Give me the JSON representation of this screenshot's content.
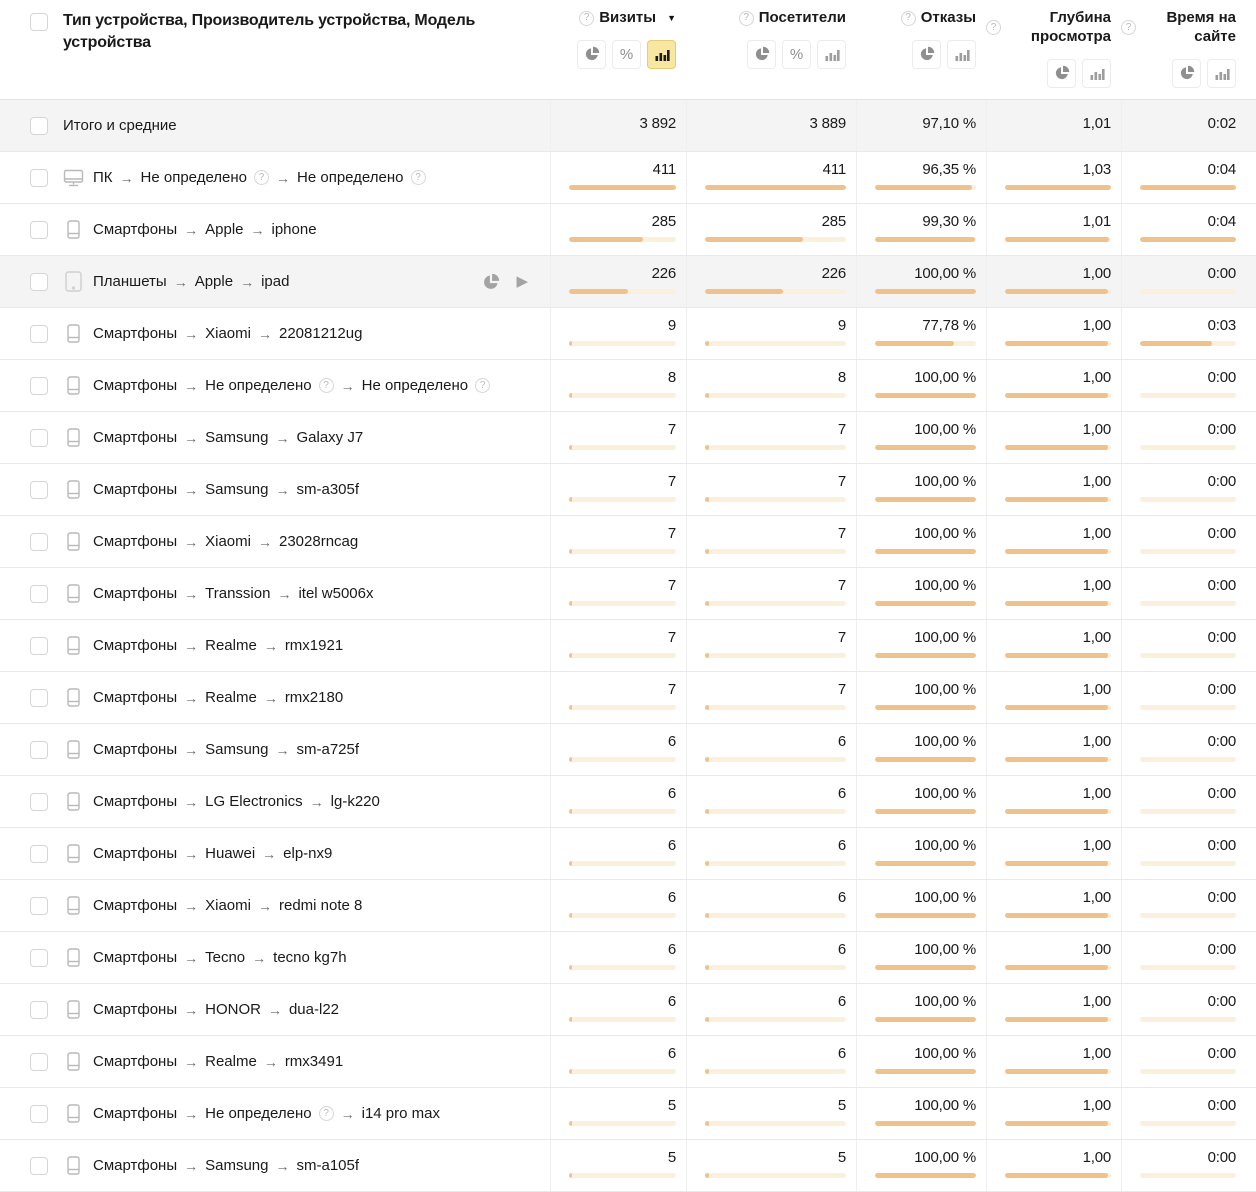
{
  "header": {
    "title": "Тип устройства, Производитель устройства, Модель устройства",
    "columns": [
      {
        "label": "Визиты",
        "help_icon": "help-circle",
        "sorted": "desc",
        "tools": [
          "pie",
          "percent",
          "bars"
        ],
        "active_tool": "bars"
      },
      {
        "label": "Посетители",
        "help_icon": "help-circle",
        "sorted": null,
        "tools": [
          "pie",
          "percent",
          "bars"
        ],
        "active_tool": null
      },
      {
        "label": "Отказы",
        "help_icon": "help-circle",
        "sorted": null,
        "tools": [
          "pie",
          "bars"
        ],
        "active_tool": null
      },
      {
        "label": "Глубина просмотра",
        "help_icon": "help-circle",
        "sorted": null,
        "tools": [
          "pie",
          "bars"
        ],
        "active_tool": null
      },
      {
        "label": "Время на сайте",
        "help_icon": "help-circle",
        "sorted": null,
        "tools": [
          "pie",
          "bars"
        ],
        "active_tool": null
      }
    ]
  },
  "totals": {
    "label": "Итого и средние",
    "visits": "3 892",
    "visitors": "3 889",
    "bounce": "97,10 %",
    "depth": "1,01",
    "time": "0:02"
  },
  "bar_scale": {
    "visits_max": 411,
    "visitors_max": 411,
    "bounce_max": 100,
    "depth_max": 1.03,
    "time_max": 4
  },
  "colors": {
    "bar_fill": "#efc28a",
    "bar_track": "#faf0dd",
    "selected_tool_bg": "#f8e7a0"
  },
  "rows": [
    {
      "icon": "desktop",
      "segments": [
        {
          "text": "ПК"
        },
        {
          "text": "Не определено",
          "help": true
        },
        {
          "text": "Не определено",
          "help": true
        }
      ],
      "visits": "411",
      "visitors": "411",
      "bounce": "96,35 %",
      "depth": "1,03",
      "time": "0:04",
      "nums": {
        "visits": 411,
        "visitors": 411,
        "bounce": 96.35,
        "depth": 1.03,
        "time": 4
      },
      "selected": false
    },
    {
      "icon": "phone",
      "segments": [
        {
          "text": "Смартфоны"
        },
        {
          "text": "Apple"
        },
        {
          "text": "iphone"
        }
      ],
      "visits": "285",
      "visitors": "285",
      "bounce": "99,30 %",
      "depth": "1,01",
      "time": "0:04",
      "nums": {
        "visits": 285,
        "visitors": 285,
        "bounce": 99.3,
        "depth": 1.01,
        "time": 4
      },
      "selected": false
    },
    {
      "icon": "tablet",
      "segments": [
        {
          "text": "Планшеты"
        },
        {
          "text": "Apple"
        },
        {
          "text": "ipad"
        }
      ],
      "visits": "226",
      "visitors": "226",
      "bounce": "100,00 %",
      "depth": "1,00",
      "time": "0:00",
      "nums": {
        "visits": 226,
        "visitors": 226,
        "bounce": 100,
        "depth": 1.0,
        "time": 0
      },
      "selected": true,
      "actions": [
        "pie-chart",
        "expand-play"
      ]
    },
    {
      "icon": "phone",
      "segments": [
        {
          "text": "Смартфоны"
        },
        {
          "text": "Xiaomi"
        },
        {
          "text": "22081212ug"
        }
      ],
      "visits": "9",
      "visitors": "9",
      "bounce": "77,78 %",
      "depth": "1,00",
      "time": "0:03",
      "nums": {
        "visits": 9,
        "visitors": 9,
        "bounce": 77.78,
        "depth": 1.0,
        "time": 3
      },
      "selected": false
    },
    {
      "icon": "phone",
      "segments": [
        {
          "text": "Смартфоны"
        },
        {
          "text": "Не определено",
          "help": true
        },
        {
          "text": "Не определено",
          "help": true
        }
      ],
      "visits": "8",
      "visitors": "8",
      "bounce": "100,00 %",
      "depth": "1,00",
      "time": "0:00",
      "nums": {
        "visits": 8,
        "visitors": 8,
        "bounce": 100,
        "depth": 1.0,
        "time": 0
      },
      "selected": false
    },
    {
      "icon": "phone",
      "segments": [
        {
          "text": "Смартфоны"
        },
        {
          "text": "Samsung"
        },
        {
          "text": "Galaxy J7"
        }
      ],
      "visits": "7",
      "visitors": "7",
      "bounce": "100,00 %",
      "depth": "1,00",
      "time": "0:00",
      "nums": {
        "visits": 7,
        "visitors": 7,
        "bounce": 100,
        "depth": 1.0,
        "time": 0
      },
      "selected": false
    },
    {
      "icon": "phone",
      "segments": [
        {
          "text": "Смартфоны"
        },
        {
          "text": "Samsung"
        },
        {
          "text": "sm-a305f"
        }
      ],
      "visits": "7",
      "visitors": "7",
      "bounce": "100,00 %",
      "depth": "1,00",
      "time": "0:00",
      "nums": {
        "visits": 7,
        "visitors": 7,
        "bounce": 100,
        "depth": 1.0,
        "time": 0
      },
      "selected": false
    },
    {
      "icon": "phone",
      "segments": [
        {
          "text": "Смартфоны"
        },
        {
          "text": "Xiaomi"
        },
        {
          "text": "23028rncag"
        }
      ],
      "visits": "7",
      "visitors": "7",
      "bounce": "100,00 %",
      "depth": "1,00",
      "time": "0:00",
      "nums": {
        "visits": 7,
        "visitors": 7,
        "bounce": 100,
        "depth": 1.0,
        "time": 0
      },
      "selected": false
    },
    {
      "icon": "phone",
      "segments": [
        {
          "text": "Смартфоны"
        },
        {
          "text": "Transsion"
        },
        {
          "text": "itel w5006x"
        }
      ],
      "visits": "7",
      "visitors": "7",
      "bounce": "100,00 %",
      "depth": "1,00",
      "time": "0:00",
      "nums": {
        "visits": 7,
        "visitors": 7,
        "bounce": 100,
        "depth": 1.0,
        "time": 0
      },
      "selected": false
    },
    {
      "icon": "phone",
      "segments": [
        {
          "text": "Смартфоны"
        },
        {
          "text": "Realme"
        },
        {
          "text": "rmx1921"
        }
      ],
      "visits": "7",
      "visitors": "7",
      "bounce": "100,00 %",
      "depth": "1,00",
      "time": "0:00",
      "nums": {
        "visits": 7,
        "visitors": 7,
        "bounce": 100,
        "depth": 1.0,
        "time": 0
      },
      "selected": false
    },
    {
      "icon": "phone",
      "segments": [
        {
          "text": "Смартфоны"
        },
        {
          "text": "Realme"
        },
        {
          "text": "rmx2180"
        }
      ],
      "visits": "7",
      "visitors": "7",
      "bounce": "100,00 %",
      "depth": "1,00",
      "time": "0:00",
      "nums": {
        "visits": 7,
        "visitors": 7,
        "bounce": 100,
        "depth": 1.0,
        "time": 0
      },
      "selected": false
    },
    {
      "icon": "phone",
      "segments": [
        {
          "text": "Смартфоны"
        },
        {
          "text": "Samsung"
        },
        {
          "text": "sm-a725f"
        }
      ],
      "visits": "6",
      "visitors": "6",
      "bounce": "100,00 %",
      "depth": "1,00",
      "time": "0:00",
      "nums": {
        "visits": 6,
        "visitors": 6,
        "bounce": 100,
        "depth": 1.0,
        "time": 0
      },
      "selected": false
    },
    {
      "icon": "phone",
      "segments": [
        {
          "text": "Смартфоны"
        },
        {
          "text": "LG Electronics"
        },
        {
          "text": "lg-k220"
        }
      ],
      "visits": "6",
      "visitors": "6",
      "bounce": "100,00 %",
      "depth": "1,00",
      "time": "0:00",
      "nums": {
        "visits": 6,
        "visitors": 6,
        "bounce": 100,
        "depth": 1.0,
        "time": 0
      },
      "selected": false
    },
    {
      "icon": "phone",
      "segments": [
        {
          "text": "Смартфоны"
        },
        {
          "text": "Huawei"
        },
        {
          "text": "elp-nx9"
        }
      ],
      "visits": "6",
      "visitors": "6",
      "bounce": "100,00 %",
      "depth": "1,00",
      "time": "0:00",
      "nums": {
        "visits": 6,
        "visitors": 6,
        "bounce": 100,
        "depth": 1.0,
        "time": 0
      },
      "selected": false
    },
    {
      "icon": "phone",
      "segments": [
        {
          "text": "Смартфоны"
        },
        {
          "text": "Xiaomi"
        },
        {
          "text": "redmi note 8"
        }
      ],
      "visits": "6",
      "visitors": "6",
      "bounce": "100,00 %",
      "depth": "1,00",
      "time": "0:00",
      "nums": {
        "visits": 6,
        "visitors": 6,
        "bounce": 100,
        "depth": 1.0,
        "time": 0
      },
      "selected": false
    },
    {
      "icon": "phone",
      "segments": [
        {
          "text": "Смартфоны"
        },
        {
          "text": "Tecno"
        },
        {
          "text": "tecno kg7h"
        }
      ],
      "visits": "6",
      "visitors": "6",
      "bounce": "100,00 %",
      "depth": "1,00",
      "time": "0:00",
      "nums": {
        "visits": 6,
        "visitors": 6,
        "bounce": 100,
        "depth": 1.0,
        "time": 0
      },
      "selected": false
    },
    {
      "icon": "phone",
      "segments": [
        {
          "text": "Смартфоны"
        },
        {
          "text": "HONOR"
        },
        {
          "text": "dua-l22"
        }
      ],
      "visits": "6",
      "visitors": "6",
      "bounce": "100,00 %",
      "depth": "1,00",
      "time": "0:00",
      "nums": {
        "visits": 6,
        "visitors": 6,
        "bounce": 100,
        "depth": 1.0,
        "time": 0
      },
      "selected": false
    },
    {
      "icon": "phone",
      "segments": [
        {
          "text": "Смартфоны"
        },
        {
          "text": "Realme"
        },
        {
          "text": "rmx3491"
        }
      ],
      "visits": "6",
      "visitors": "6",
      "bounce": "100,00 %",
      "depth": "1,00",
      "time": "0:00",
      "nums": {
        "visits": 6,
        "visitors": 6,
        "bounce": 100,
        "depth": 1.0,
        "time": 0
      },
      "selected": false
    },
    {
      "icon": "phone",
      "segments": [
        {
          "text": "Смартфоны"
        },
        {
          "text": "Не определено",
          "help": true
        },
        {
          "text": "i14 pro max"
        }
      ],
      "visits": "5",
      "visitors": "5",
      "bounce": "100,00 %",
      "depth": "1,00",
      "time": "0:00",
      "nums": {
        "visits": 5,
        "visitors": 5,
        "bounce": 100,
        "depth": 1.0,
        "time": 0
      },
      "selected": false
    },
    {
      "icon": "phone",
      "segments": [
        {
          "text": "Смартфоны"
        },
        {
          "text": "Samsung"
        },
        {
          "text": "sm-a105f"
        }
      ],
      "visits": "5",
      "visitors": "5",
      "bounce": "100,00 %",
      "depth": "1,00",
      "time": "0:00",
      "nums": {
        "visits": 5,
        "visitors": 5,
        "bounce": 100,
        "depth": 1.0,
        "time": 0
      },
      "selected": false
    }
  ]
}
